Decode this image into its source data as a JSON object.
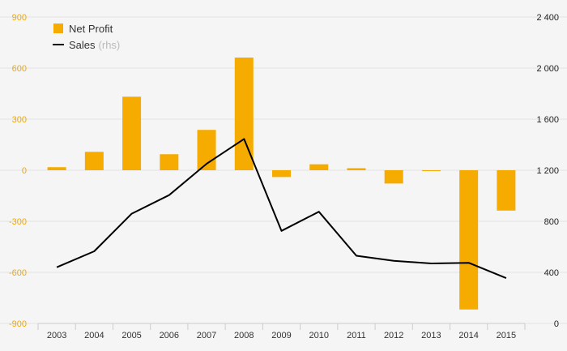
{
  "chart_data": {
    "type": "bar+line",
    "categories": [
      "2003",
      "2004",
      "2005",
      "2006",
      "2007",
      "2008",
      "2009",
      "2010",
      "2011",
      "2012",
      "2013",
      "2014",
      "2015"
    ],
    "series": [
      {
        "name": "Net Profit",
        "type": "bar",
        "axis": "left",
        "color": "#f5ab00",
        "values": [
          18,
          108,
          432,
          94,
          237,
          662,
          -40,
          35,
          12,
          -78,
          -5,
          -818,
          -237
        ]
      },
      {
        "name": "Sales",
        "type": "line",
        "axis": "right",
        "color": "#000000",
        "values": [
          440,
          565,
          860,
          1005,
          1250,
          1445,
          725,
          875,
          530,
          490,
          470,
          475,
          355
        ]
      }
    ],
    "legend": {
      "sales_note": "(rhs)",
      "placement": "top-left"
    },
    "y_left": {
      "ylim": [
        -900,
        900
      ],
      "ticks": [
        "900",
        "600",
        "300",
        "0",
        "-300",
        "-600",
        "-900"
      ],
      "tick_values": [
        900,
        600,
        300,
        0,
        -300,
        -600,
        -900
      ]
    },
    "y_right": {
      "ylim": [
        0,
        2400
      ],
      "ticks": [
        "2 400",
        "2 000",
        "1 600",
        "1 200",
        "800",
        "400",
        "0"
      ],
      "tick_values": [
        2400,
        2000,
        1600,
        1200,
        800,
        400,
        0
      ]
    },
    "grid": "horizontal",
    "colors": {
      "bar": "#f5ab00",
      "line": "#000000",
      "left_axis_text": "#f0a800",
      "right_axis_text": "#222222",
      "background": "#f5f5f5",
      "grid": "#e3e3e3"
    }
  }
}
